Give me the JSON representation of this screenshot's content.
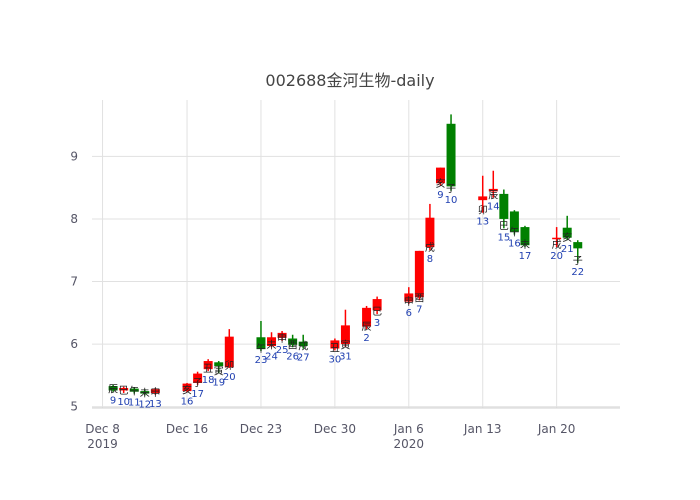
{
  "chart_data": {
    "type": "candlestick",
    "title": "002688金河生物-daily",
    "xlabel": "",
    "ylabel": "",
    "x_range": [
      "2019-12-07",
      "2020-01-26"
    ],
    "ylim": [
      4.98,
      9.9
    ],
    "grid": true,
    "legend": "none",
    "increasing_color": "#ff0000",
    "decreasing_color": "#008000",
    "x_ticks": [
      {
        "date": "2019-12-08",
        "label": "Dec 8",
        "sublabel": "2019"
      },
      {
        "date": "2019-12-16",
        "label": "Dec 16",
        "sublabel": ""
      },
      {
        "date": "2019-12-23",
        "label": "Dec 23",
        "sublabel": ""
      },
      {
        "date": "2019-12-30",
        "label": "Dec 30",
        "sublabel": ""
      },
      {
        "date": "2020-01-06",
        "label": "Jan 6",
        "sublabel": "2020"
      },
      {
        "date": "2020-01-13",
        "label": "Jan 13",
        "sublabel": ""
      },
      {
        "date": "2020-01-20",
        "label": "Jan 20",
        "sublabel": ""
      }
    ],
    "y_ticks": [
      5,
      6,
      7,
      8,
      9
    ],
    "candles": [
      {
        "date": "2019-12-09",
        "open": 5.33,
        "high": 5.35,
        "low": 5.24,
        "close": 5.26,
        "ganzhi": "辰",
        "day": "9"
      },
      {
        "date": "2019-12-10",
        "open": 5.26,
        "high": 5.32,
        "low": 5.22,
        "close": 5.3,
        "ganzhi": "巳",
        "day": "10"
      },
      {
        "date": "2019-12-11",
        "open": 5.29,
        "high": 5.31,
        "low": 5.21,
        "close": 5.24,
        "ganzhi": "午",
        "day": "11"
      },
      {
        "date": "2019-12-12",
        "open": 5.25,
        "high": 5.28,
        "low": 5.18,
        "close": 5.21,
        "ganzhi": "未",
        "day": "12"
      },
      {
        "date": "2019-12-13",
        "open": 5.22,
        "high": 5.3,
        "low": 5.19,
        "close": 5.28,
        "ganzhi": "申",
        "day": "13"
      },
      {
        "date": "2019-12-16",
        "open": 5.25,
        "high": 5.38,
        "low": 5.23,
        "close": 5.37,
        "ganzhi": "亥",
        "day": "16"
      },
      {
        "date": "2019-12-17",
        "open": 5.38,
        "high": 5.56,
        "low": 5.35,
        "close": 5.53,
        "ganzhi": "子",
        "day": "17"
      },
      {
        "date": "2019-12-18",
        "open": 5.6,
        "high": 5.76,
        "low": 5.57,
        "close": 5.73,
        "ganzhi": "丑",
        "day": "18"
      },
      {
        "date": "2019-12-19",
        "open": 5.71,
        "high": 5.73,
        "low": 5.53,
        "close": 5.65,
        "ganzhi": "寅",
        "day": "19"
      },
      {
        "date": "2019-12-20",
        "open": 5.63,
        "high": 6.24,
        "low": 5.62,
        "close": 6.12,
        "ganzhi": "卯",
        "day": "20"
      },
      {
        "date": "2019-12-23",
        "open": 6.11,
        "high": 6.37,
        "low": 5.89,
        "close": 5.92,
        "ganzhi": "午",
        "day": "23"
      },
      {
        "date": "2019-12-24",
        "open": 5.97,
        "high": 6.19,
        "low": 5.95,
        "close": 6.11,
        "ganzhi": "未",
        "day": "24"
      },
      {
        "date": "2019-12-25",
        "open": 6.1,
        "high": 6.21,
        "low": 6.05,
        "close": 6.18,
        "ganzhi": "申",
        "day": "25"
      },
      {
        "date": "2019-12-26",
        "open": 6.09,
        "high": 6.15,
        "low": 5.95,
        "close": 5.99,
        "ganzhi": "酉",
        "day": "26"
      },
      {
        "date": "2019-12-27",
        "open": 6.04,
        "high": 6.15,
        "low": 5.93,
        "close": 5.97,
        "ganzhi": "戌",
        "day": "27"
      },
      {
        "date": "2019-12-30",
        "open": 5.93,
        "high": 6.09,
        "low": 5.9,
        "close": 6.06,
        "ganzhi": "丑",
        "day": "30"
      },
      {
        "date": "2019-12-31",
        "open": 6.0,
        "high": 6.55,
        "low": 5.95,
        "close": 6.3,
        "ganzhi": "寅",
        "day": "31"
      },
      {
        "date": "2020-01-02",
        "open": 6.28,
        "high": 6.61,
        "low": 6.24,
        "close": 6.58,
        "ganzhi": "辰",
        "day": "2"
      },
      {
        "date": "2020-01-03",
        "open": 6.54,
        "high": 6.76,
        "low": 6.48,
        "close": 6.72,
        "ganzhi": "巳",
        "day": "3"
      },
      {
        "date": "2020-01-06",
        "open": 6.68,
        "high": 6.91,
        "low": 6.64,
        "close": 6.81,
        "ganzhi": "申",
        "day": "6"
      },
      {
        "date": "2020-01-07",
        "open": 6.75,
        "high": 7.49,
        "low": 6.7,
        "close": 7.49,
        "ganzhi": "酉",
        "day": "7"
      },
      {
        "date": "2020-01-08",
        "open": 7.55,
        "high": 8.24,
        "low": 7.5,
        "close": 8.02,
        "ganzhi": "戌",
        "day": "8"
      },
      {
        "date": "2020-01-09",
        "open": 8.57,
        "high": 8.82,
        "low": 8.53,
        "close": 8.82,
        "ganzhi": "亥",
        "day": "9"
      },
      {
        "date": "2020-01-10",
        "open": 9.52,
        "high": 9.67,
        "low": 8.45,
        "close": 8.52,
        "ganzhi": "子",
        "day": "10"
      },
      {
        "date": "2020-01-13",
        "open": 8.3,
        "high": 8.69,
        "low": 8.1,
        "close": 8.36,
        "ganzhi": "卯",
        "day": "13"
      },
      {
        "date": "2020-01-14",
        "open": 8.44,
        "high": 8.77,
        "low": 8.34,
        "close": 8.48,
        "ganzhi": "辰",
        "day": "14"
      },
      {
        "date": "2020-01-15",
        "open": 8.4,
        "high": 8.47,
        "low": 7.85,
        "close": 8.0,
        "ganzhi": "巳",
        "day": "15"
      },
      {
        "date": "2020-01-16",
        "open": 8.12,
        "high": 8.14,
        "low": 7.75,
        "close": 7.8,
        "ganzhi": "午",
        "day": "16"
      },
      {
        "date": "2020-01-17",
        "open": 7.87,
        "high": 7.89,
        "low": 7.55,
        "close": 7.58,
        "ganzhi": "未",
        "day": "17"
      },
      {
        "date": "2020-01-20",
        "open": 7.68,
        "high": 7.87,
        "low": 7.55,
        "close": 7.7,
        "ganzhi": "戌",
        "day": "20"
      },
      {
        "date": "2020-01-21",
        "open": 7.86,
        "high": 8.05,
        "low": 7.66,
        "close": 7.7,
        "ganzhi": "亥",
        "day": "21"
      },
      {
        "date": "2020-01-22",
        "open": 7.63,
        "high": 7.66,
        "low": 7.3,
        "close": 7.53,
        "ganzhi": "子",
        "day": "22"
      }
    ]
  }
}
